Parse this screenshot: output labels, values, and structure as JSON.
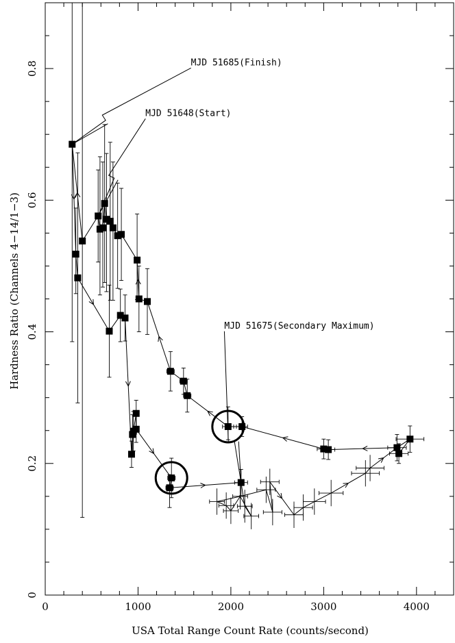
{
  "chart_data": {
    "type": "scatter",
    "xlabel": "USA Total Range Count Rate (counts/second)",
    "ylabel": "Hardness Ratio (Channels 4−14/1−3)",
    "xlim": [
      0,
      4400
    ],
    "ylim": [
      0,
      0.9
    ],
    "x_ticks": [
      0,
      1000,
      2000,
      3000,
      4000
    ],
    "y_ticks": [
      0,
      0.2,
      0.4,
      0.6,
      0.8
    ],
    "x_tick_labels": [
      "0",
      "1000",
      "2000",
      "3000",
      "4000"
    ],
    "y_tick_labels": [
      "0",
      "0.2",
      "0.4",
      "0.6",
      "0.8"
    ],
    "grid": false,
    "squares": [
      {
        "x": 290,
        "y": 0.685,
        "yerr_lo": 0.3,
        "yerr_hi": 0.25,
        "xerr": 0
      },
      {
        "x": 330,
        "y": 0.518,
        "yerr_lo": 0.06,
        "yerr_hi": 0.07,
        "xerr": 20
      },
      {
        "x": 350,
        "y": 0.482,
        "yerr_lo": 0.19,
        "yerr_hi": 0.19,
        "xerr": 20
      },
      {
        "x": 400,
        "y": 0.538,
        "yerr_lo": 0.42,
        "yerr_hi": 0.37,
        "xerr": 20
      },
      {
        "x": 570,
        "y": 0.576,
        "yerr_lo": 0.07,
        "yerr_hi": 0.07,
        "xerr": 20
      },
      {
        "x": 590,
        "y": 0.556,
        "yerr_lo": 0.1,
        "yerr_hi": 0.11,
        "xerr": 20
      },
      {
        "x": 620,
        "y": 0.558,
        "yerr_lo": 0.09,
        "yerr_hi": 0.1,
        "xerr": 20
      },
      {
        "x": 640,
        "y": 0.595,
        "yerr_lo": 0.12,
        "yerr_hi": 0.12,
        "xerr": 20
      },
      {
        "x": 660,
        "y": 0.571,
        "yerr_lo": 0.11,
        "yerr_hi": 0.1,
        "xerr": 20
      },
      {
        "x": 700,
        "y": 0.568,
        "yerr_lo": 0.12,
        "yerr_hi": 0.12,
        "xerr": 20
      },
      {
        "x": 730,
        "y": 0.558,
        "yerr_lo": 0.11,
        "yerr_hi": 0.1,
        "xerr": 20
      },
      {
        "x": 780,
        "y": 0.546,
        "yerr_lo": 0.08,
        "yerr_hi": 0.08,
        "xerr": 20
      },
      {
        "x": 820,
        "y": 0.548,
        "yerr_lo": 0.07,
        "yerr_hi": 0.07,
        "xerr": 20
      },
      {
        "x": 690,
        "y": 0.401,
        "yerr_lo": 0.07,
        "yerr_hi": 0.07,
        "xerr": 20
      },
      {
        "x": 990,
        "y": 0.509,
        "yerr_lo": 0.06,
        "yerr_hi": 0.07,
        "xerr": 20
      },
      {
        "x": 1010,
        "y": 0.45,
        "yerr_lo": 0.05,
        "yerr_hi": 0.05,
        "xerr": 20
      },
      {
        "x": 1100,
        "y": 0.446,
        "yerr_lo": 0.05,
        "yerr_hi": 0.05,
        "xerr": 25
      },
      {
        "x": 810,
        "y": 0.425,
        "yerr_lo": 0.04,
        "yerr_hi": 0.04,
        "xerr": 20
      },
      {
        "x": 860,
        "y": 0.421,
        "yerr_lo": 0.035,
        "yerr_hi": 0.035,
        "xerr": 20
      },
      {
        "x": 1350,
        "y": 0.34,
        "yerr_lo": 0.03,
        "yerr_hi": 0.03,
        "xerr": 40
      },
      {
        "x": 1490,
        "y": 0.325,
        "yerr_lo": 0.02,
        "yerr_hi": 0.02,
        "xerr": 40
      },
      {
        "x": 1530,
        "y": 0.303,
        "yerr_lo": 0.025,
        "yerr_hi": 0.025,
        "xerr": 40
      },
      {
        "x": 1970,
        "y": 0.256,
        "yerr_lo": 0.02,
        "yerr_hi": 0.03,
        "xerr": 60
      },
      {
        "x": 2120,
        "y": 0.256,
        "yerr_lo": 0.015,
        "yerr_hi": 0.015,
        "xerr": 60
      },
      {
        "x": 3000,
        "y": 0.222,
        "yerr_lo": 0.015,
        "yerr_hi": 0.015,
        "xerr": 70
      },
      {
        "x": 3050,
        "y": 0.221,
        "yerr_lo": 0.015,
        "yerr_hi": 0.015,
        "xerr": 70
      },
      {
        "x": 3790,
        "y": 0.224,
        "yerr_lo": 0.02,
        "yerr_hi": 0.02,
        "xerr": 100
      },
      {
        "x": 3810,
        "y": 0.215,
        "yerr_lo": 0.015,
        "yerr_hi": 0.015,
        "xerr": 100
      },
      {
        "x": 3930,
        "y": 0.237,
        "yerr_lo": 0.02,
        "yerr_hi": 0.02,
        "xerr": 150
      },
      {
        "x": 980,
        "y": 0.276,
        "yerr_lo": 0.02,
        "yerr_hi": 0.02,
        "xerr": 20
      },
      {
        "x": 950,
        "y": 0.249,
        "yerr_lo": 0.03,
        "yerr_hi": 0.03,
        "xerr": 20
      },
      {
        "x": 940,
        "y": 0.244,
        "yerr_lo": 0.03,
        "yerr_hi": 0.03,
        "xerr": 20
      },
      {
        "x": 980,
        "y": 0.252,
        "yerr_lo": 0.02,
        "yerr_hi": 0.02,
        "xerr": 20
      },
      {
        "x": 930,
        "y": 0.214,
        "yerr_lo": 0.02,
        "yerr_hi": 0.02,
        "xerr": 20
      },
      {
        "x": 1360,
        "y": 0.178,
        "yerr_lo": 0.03,
        "yerr_hi": 0.03,
        "xerr": 40
      },
      {
        "x": 1340,
        "y": 0.163,
        "yerr_lo": 0.03,
        "yerr_hi": 0.02,
        "xerr": 40
      },
      {
        "x": 2110,
        "y": 0.171,
        "yerr_lo": 0.02,
        "yerr_hi": 0.02,
        "xerr": 70
      }
    ],
    "crosses": [
      {
        "x": 1850,
        "y": 0.142,
        "xerr": 80,
        "yerr": 0.02
      },
      {
        "x": 1950,
        "y": 0.136,
        "xerr": 80,
        "yerr": 0.02
      },
      {
        "x": 2000,
        "y": 0.128,
        "xerr": 80,
        "yerr": 0.02
      },
      {
        "x": 2100,
        "y": 0.15,
        "xerr": 80,
        "yerr": 0.02
      },
      {
        "x": 2150,
        "y": 0.135,
        "xerr": 80,
        "yerr": 0.025
      },
      {
        "x": 2220,
        "y": 0.12,
        "xerr": 80,
        "yerr": 0.02
      },
      {
        "x": 2380,
        "y": 0.16,
        "xerr": 100,
        "yerr": 0.02
      },
      {
        "x": 2450,
        "y": 0.126,
        "xerr": 100,
        "yerr": 0.02
      },
      {
        "x": 2420,
        "y": 0.172,
        "xerr": 100,
        "yerr": 0.02
      },
      {
        "x": 2680,
        "y": 0.122,
        "xerr": 100,
        "yerr": 0.02
      },
      {
        "x": 2780,
        "y": 0.133,
        "xerr": 100,
        "yerr": 0.02
      },
      {
        "x": 2900,
        "y": 0.142,
        "xerr": 120,
        "yerr": 0.02
      },
      {
        "x": 3080,
        "y": 0.155,
        "xerr": 130,
        "yerr": 0.02
      },
      {
        "x": 3450,
        "y": 0.185,
        "xerr": 150,
        "yerr": 0.02
      },
      {
        "x": 3500,
        "y": 0.193,
        "xerr": 150,
        "yerr": 0.02
      }
    ],
    "track": [
      [
        290,
        0.685
      ],
      [
        330,
        0.518
      ],
      [
        350,
        0.482
      ],
      [
        690,
        0.401
      ],
      [
        810,
        0.425
      ],
      [
        860,
        0.421
      ],
      [
        930,
        0.214
      ],
      [
        950,
        0.249
      ],
      [
        980,
        0.276
      ],
      [
        980,
        0.252
      ],
      [
        1360,
        0.178
      ],
      [
        1340,
        0.163
      ],
      [
        2110,
        0.171
      ],
      [
        2150,
        0.135
      ],
      [
        2220,
        0.12
      ],
      [
        2100,
        0.15
      ],
      [
        2000,
        0.128
      ],
      [
        1950,
        0.136
      ],
      [
        1850,
        0.142
      ],
      [
        2100,
        0.15
      ],
      [
        2380,
        0.16
      ],
      [
        2450,
        0.126
      ],
      [
        2420,
        0.172
      ],
      [
        2680,
        0.122
      ],
      [
        2780,
        0.133
      ],
      [
        2900,
        0.142
      ],
      [
        3080,
        0.155
      ],
      [
        3450,
        0.185
      ],
      [
        3500,
        0.193
      ],
      [
        3790,
        0.224
      ],
      [
        3930,
        0.237
      ],
      [
        3810,
        0.215
      ],
      [
        3790,
        0.224
      ],
      [
        3050,
        0.221
      ],
      [
        3000,
        0.222
      ],
      [
        2120,
        0.256
      ],
      [
        1970,
        0.256
      ],
      [
        1530,
        0.303
      ],
      [
        1490,
        0.325
      ],
      [
        1350,
        0.34
      ],
      [
        1100,
        0.446
      ],
      [
        1010,
        0.45
      ],
      [
        990,
        0.509
      ],
      [
        820,
        0.548
      ],
      [
        780,
        0.546
      ],
      [
        730,
        0.558
      ],
      [
        700,
        0.568
      ],
      [
        660,
        0.571
      ],
      [
        640,
        0.595
      ],
      [
        620,
        0.558
      ],
      [
        590,
        0.556
      ],
      [
        570,
        0.576
      ],
      [
        400,
        0.538
      ],
      [
        290,
        0.685
      ]
    ],
    "circles": [
      {
        "x": 1970,
        "y": 0.256
      },
      {
        "x": 1360,
        "y": 0.178
      }
    ],
    "annotations": [
      {
        "text": "MJD 51685(Finish)",
        "x": 1570,
        "y": 0.805,
        "target_x": 290,
        "target_y": 0.685
      },
      {
        "text": "MJD 51648(Start)",
        "x": 1080,
        "y": 0.728,
        "target_x": 570,
        "target_y": 0.576
      },
      {
        "text": "MJD 51675(Secondary Maximum)",
        "x": 1930,
        "y": 0.405,
        "target_x": 2110,
        "target_y": 0.171
      }
    ]
  }
}
